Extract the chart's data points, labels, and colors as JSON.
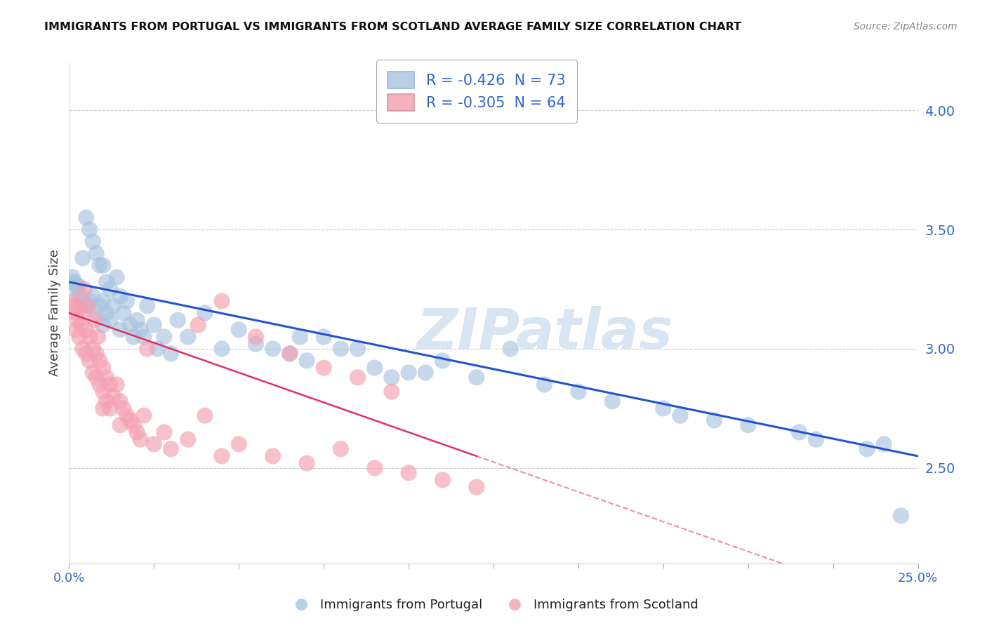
{
  "title": "IMMIGRANTS FROM PORTUGAL VS IMMIGRANTS FROM SCOTLAND AVERAGE FAMILY SIZE CORRELATION CHART",
  "source": "Source: ZipAtlas.com",
  "ylabel": "Average Family Size",
  "right_yticks": [
    2.5,
    3.0,
    3.5,
    4.0
  ],
  "xlim": [
    0.0,
    25.0
  ],
  "ylim": [
    2.1,
    4.2
  ],
  "legend1_label": "R = -0.426  N = 73",
  "legend2_label": "R = -0.305  N = 64",
  "blue_color": "#A8C4E0",
  "pink_color": "#F4A0B0",
  "blue_line_color": "#2255CC",
  "pink_line_color": "#E03060",
  "blue_line_start_y": 3.28,
  "blue_line_end_y": 2.55,
  "pink_line_start_y": 3.15,
  "pink_line_end_x": 12.0,
  "pink_line_end_y": 2.55,
  "watermark": "ZIPatlas",
  "portugal_x": [
    0.1,
    0.15,
    0.2,
    0.25,
    0.3,
    0.3,
    0.4,
    0.4,
    0.5,
    0.5,
    0.6,
    0.6,
    0.7,
    0.7,
    0.8,
    0.8,
    0.9,
    0.9,
    1.0,
    1.0,
    1.0,
    1.1,
    1.1,
    1.2,
    1.2,
    1.3,
    1.4,
    1.5,
    1.5,
    1.6,
    1.7,
    1.8,
    1.9,
    2.0,
    2.1,
    2.2,
    2.3,
    2.5,
    2.6,
    2.8,
    3.0,
    3.2,
    3.5,
    4.0,
    4.5,
    5.0,
    5.5,
    6.0,
    6.5,
    7.0,
    7.5,
    8.0,
    9.0,
    9.5,
    10.5,
    11.0,
    12.0,
    13.0,
    14.0,
    15.0,
    16.0,
    17.5,
    18.0,
    19.0,
    20.0,
    21.5,
    22.0,
    23.5,
    24.0,
    24.5,
    10.0,
    8.5,
    6.8
  ],
  "portugal_y": [
    3.3,
    3.28,
    3.27,
    3.25,
    3.26,
    3.22,
    3.38,
    3.2,
    3.55,
    3.18,
    3.5,
    3.2,
    3.45,
    3.22,
    3.4,
    3.15,
    3.35,
    3.18,
    3.35,
    3.2,
    3.1,
    3.28,
    3.15,
    3.25,
    3.12,
    3.18,
    3.3,
    3.22,
    3.08,
    3.15,
    3.2,
    3.1,
    3.05,
    3.12,
    3.08,
    3.05,
    3.18,
    3.1,
    3.0,
    3.05,
    2.98,
    3.12,
    3.05,
    3.15,
    3.0,
    3.08,
    3.02,
    3.0,
    2.98,
    2.95,
    3.05,
    3.0,
    2.92,
    2.88,
    2.9,
    2.95,
    2.88,
    3.0,
    2.85,
    2.82,
    2.78,
    2.75,
    2.72,
    2.7,
    2.68,
    2.65,
    2.62,
    2.58,
    2.6,
    2.3,
    2.9,
    3.0,
    3.05
  ],
  "scotland_x": [
    0.1,
    0.15,
    0.2,
    0.2,
    0.25,
    0.3,
    0.3,
    0.35,
    0.4,
    0.4,
    0.5,
    0.5,
    0.6,
    0.6,
    0.7,
    0.7,
    0.8,
    0.8,
    0.9,
    0.9,
    1.0,
    1.0,
    1.0,
    1.1,
    1.1,
    1.2,
    1.2,
    1.3,
    1.4,
    1.5,
    1.5,
    1.6,
    1.7,
    1.8,
    1.9,
    2.0,
    2.1,
    2.2,
    2.5,
    2.8,
    3.0,
    3.5,
    4.0,
    4.5,
    5.0,
    6.0,
    7.0,
    8.0,
    9.0,
    10.0,
    11.0,
    12.0,
    4.5,
    3.8,
    2.3,
    5.5,
    6.5,
    7.5,
    8.5,
    9.5,
    0.45,
    0.55,
    0.75,
    0.85
  ],
  "scotland_y": [
    3.2,
    3.18,
    3.15,
    3.08,
    3.12,
    3.18,
    3.05,
    3.1,
    3.15,
    3.0,
    3.08,
    2.98,
    3.05,
    2.95,
    3.0,
    2.9,
    2.98,
    2.88,
    2.95,
    2.85,
    2.92,
    2.82,
    2.75,
    2.88,
    2.78,
    2.85,
    2.75,
    2.8,
    2.85,
    2.78,
    2.68,
    2.75,
    2.72,
    2.7,
    2.68,
    2.65,
    2.62,
    2.72,
    2.6,
    2.65,
    2.58,
    2.62,
    2.72,
    2.55,
    2.6,
    2.55,
    2.52,
    2.58,
    2.5,
    2.48,
    2.45,
    2.42,
    3.2,
    3.1,
    3.0,
    3.05,
    2.98,
    2.92,
    2.88,
    2.82,
    3.25,
    3.18,
    3.12,
    3.05
  ]
}
